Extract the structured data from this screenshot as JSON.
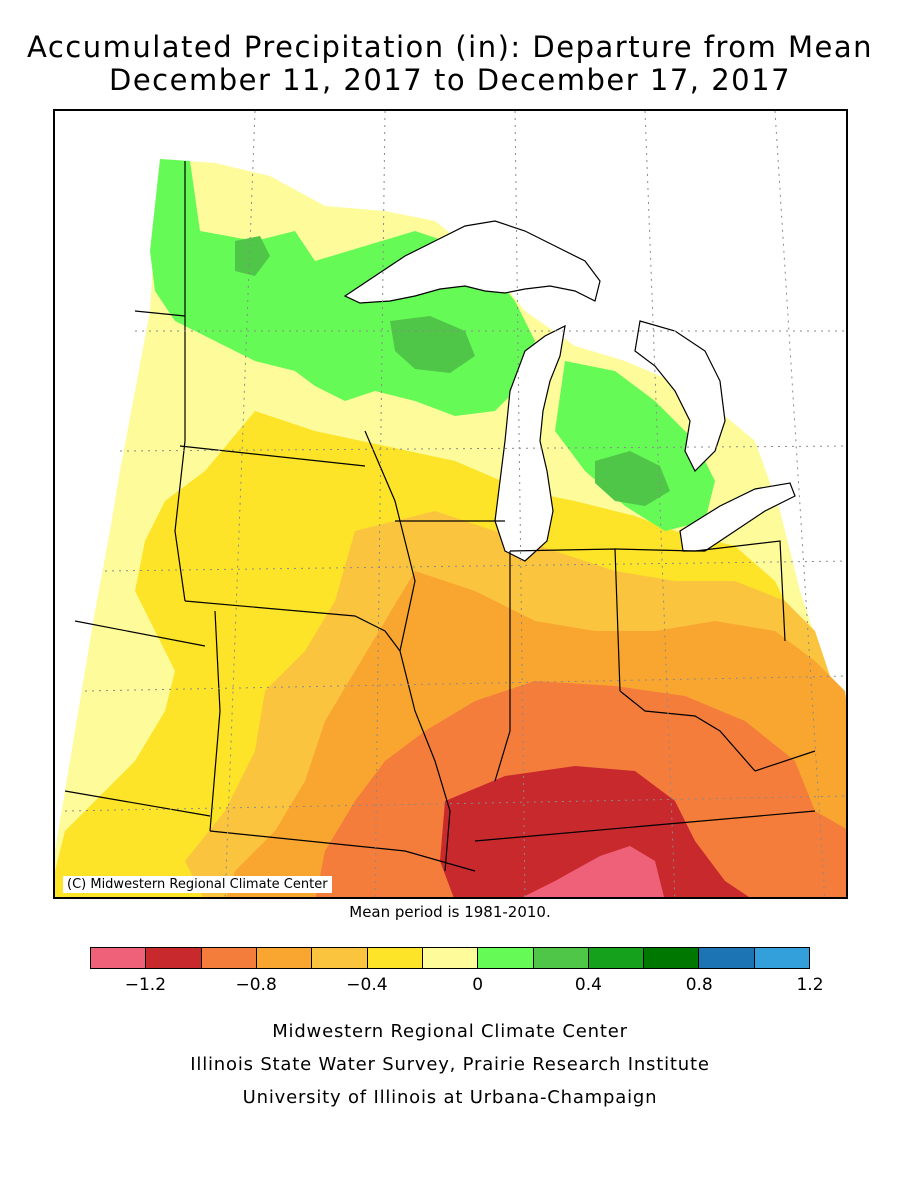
{
  "title": {
    "line1": "Accumulated Precipitation (in): Departure from Mean",
    "line2": "December 11, 2017 to December 17, 2017"
  },
  "map": {
    "copyright": "(C) Midwestern Regional Climate Center"
  },
  "mean_note": "Mean period is 1981-2010.",
  "legend": {
    "colors": [
      "#ef6079",
      "#c8292d",
      "#f47d3c",
      "#f9a630",
      "#fbc43f",
      "#fde428",
      "#fefb9a",
      "#65fa56",
      "#50c648",
      "#16a11c",
      "#007800",
      "#1c74b4",
      "#33a0dc"
    ],
    "ticks": [
      "−1.2",
      "−0.8",
      "−0.4",
      "0",
      "0.4",
      "0.8",
      "1.2"
    ]
  },
  "footer": {
    "line1": "Midwestern Regional Climate Center",
    "line2": "Illinois State Water Survey, Prairie Research Institute",
    "line3": "University of Illinois at Urbana-Champaign"
  }
}
